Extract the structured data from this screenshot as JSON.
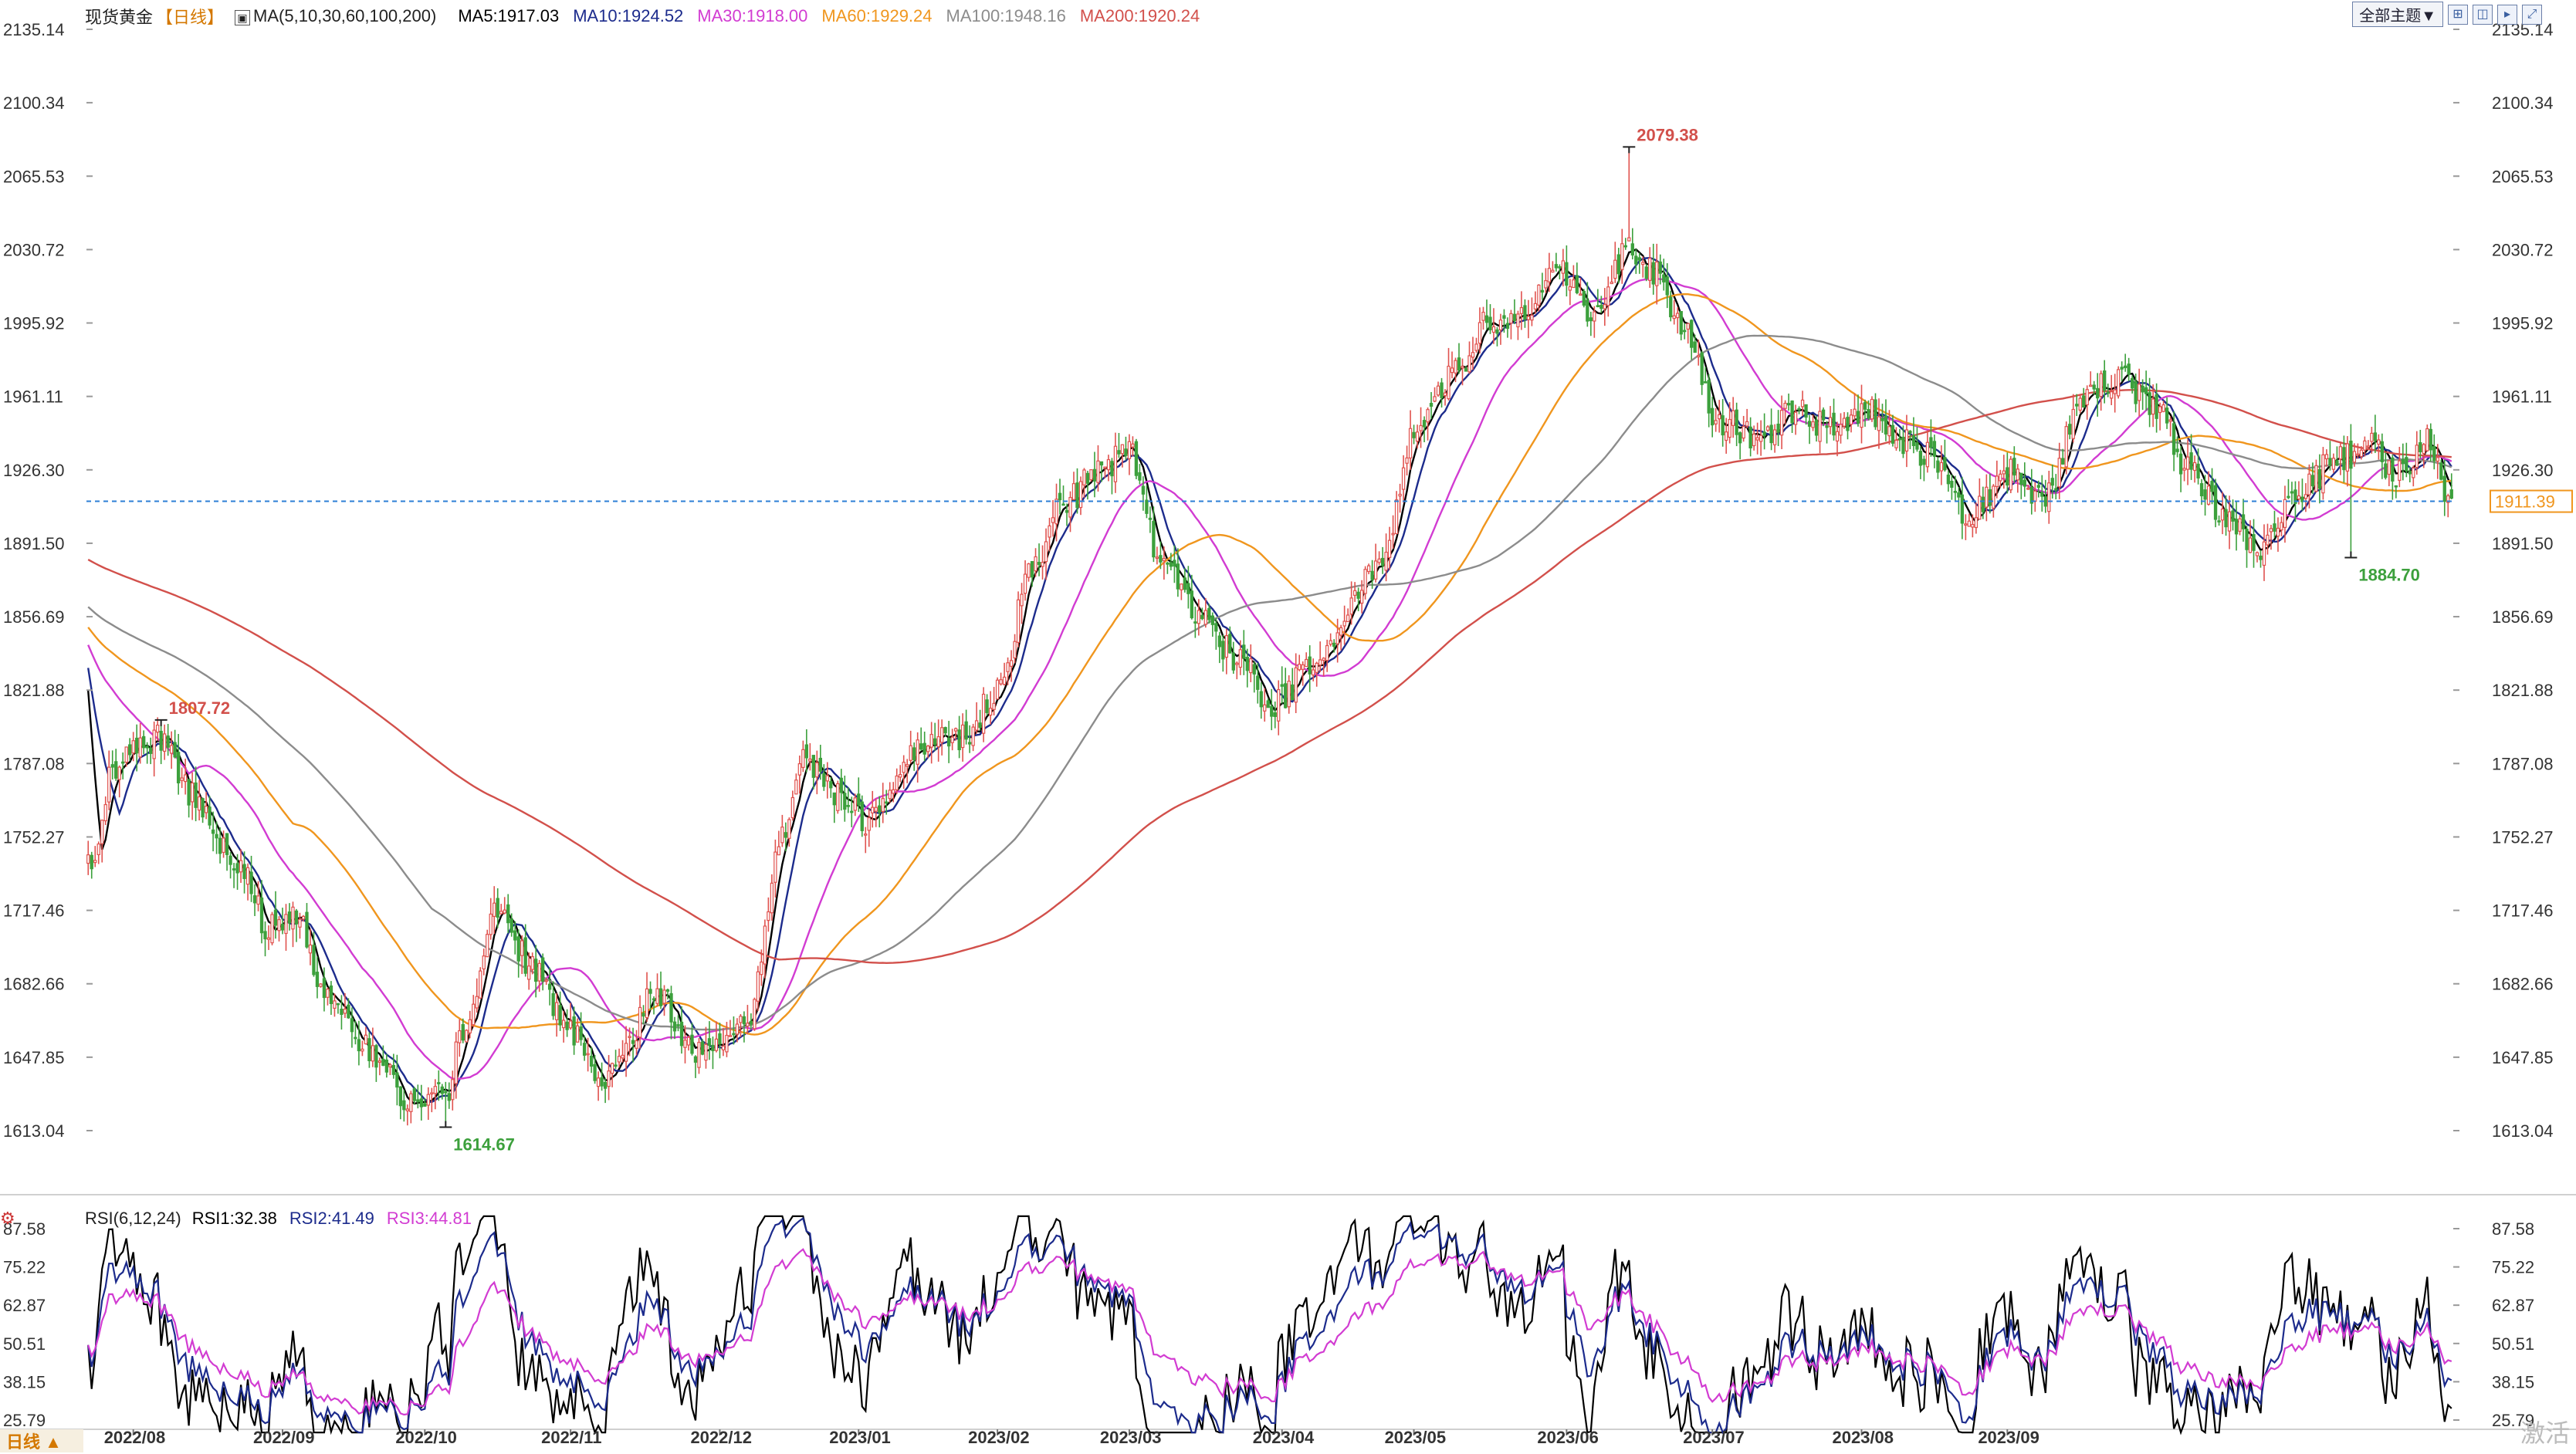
{
  "header": {
    "symbol": "现货黄金",
    "period": "【日线】",
    "ma_params": "MA(5,10,30,60,100,200)",
    "ma_values": [
      {
        "label": "MA5:1917.03",
        "color": "#000000"
      },
      {
        "label": "MA10:1924.52",
        "color": "#1c2b8c"
      },
      {
        "label": "MA30:1918.00",
        "color": "#d23cd2"
      },
      {
        "label": "MA60:1929.24",
        "color": "#f0961e"
      },
      {
        "label": "MA100:1948.16",
        "color": "#8c8c8c"
      },
      {
        "label": "MA200:1920.24",
        "color": "#d2504b"
      }
    ]
  },
  "toolbar": {
    "theme_button": "全部主题▼",
    "icons": [
      "grid-icon",
      "split-icon",
      "next-icon",
      "expand-icon"
    ]
  },
  "rsi_header": {
    "params": "RSI(6,12,24)",
    "values": [
      {
        "label": "RSI1:32.38",
        "color": "#000000"
      },
      {
        "label": "RSI2:41.49",
        "color": "#1c2b8c"
      },
      {
        "label": "RSI3:44.81",
        "color": "#d23cd2"
      }
    ]
  },
  "footer": {
    "period_button": "日线 ▲",
    "watermark": "激活"
  },
  "colors": {
    "up": "#e0524e",
    "down": "#3ca03c",
    "dashed": "#2c7fd6",
    "current_box": "#f0961e"
  },
  "chart_data": {
    "type": "candlestick",
    "price_axis": {
      "ticks": [
        "2135.14",
        "2100.34",
        "2065.53",
        "2030.72",
        "1995.92",
        "1961.11",
        "1926.30",
        "1891.50",
        "1856.69",
        "1821.88",
        "1787.08",
        "1752.27",
        "1717.46",
        "1682.66",
        "1647.85",
        "1613.04"
      ],
      "ylim": [
        1613.04,
        2135.14
      ]
    },
    "current_price": "1911.39",
    "annotations": [
      {
        "label": "1807.72",
        "x": 21,
        "y": 1807.72,
        "type": "high",
        "color": "#d2504b"
      },
      {
        "label": "1614.67",
        "x": 103,
        "y": 1614.67,
        "type": "low",
        "color": "#3ca03c"
      },
      {
        "label": "2079.38",
        "x": 444,
        "y": 2079.38,
        "type": "high",
        "color": "#d2504b"
      },
      {
        "label": "1884.70",
        "x": 652,
        "y": 1884.7,
        "type": "low",
        "color": "#3ca03c"
      }
    ],
    "x_labels": [
      {
        "label": "2022/08",
        "x": 13
      },
      {
        "label": "2022/09",
        "x": 56
      },
      {
        "label": "2022/10",
        "x": 97
      },
      {
        "label": "2022/11",
        "x": 139
      },
      {
        "label": "2022/12",
        "x": 182
      },
      {
        "label": "2023/01",
        "x": 222
      },
      {
        "label": "2023/02",
        "x": 262
      },
      {
        "label": "2023/03",
        "x": 300
      },
      {
        "label": "2023/04",
        "x": 344
      },
      {
        "label": "2023/05",
        "x": 382
      },
      {
        "label": "2023/06",
        "x": 426
      },
      {
        "label": "2023/07",
        "x": 468
      },
      {
        "label": "2023/08",
        "x": 511
      },
      {
        "label": "2023/09",
        "x": 553
      }
    ],
    "anchors": [
      [
        0,
        1740
      ],
      [
        8,
        1787
      ],
      [
        21,
        1800
      ],
      [
        30,
        1772
      ],
      [
        43,
        1740
      ],
      [
        52,
        1710
      ],
      [
        60,
        1718
      ],
      [
        68,
        1680
      ],
      [
        82,
        1650
      ],
      [
        92,
        1625
      ],
      [
        103,
        1630
      ],
      [
        108,
        1660
      ],
      [
        118,
        1720
      ],
      [
        128,
        1690
      ],
      [
        139,
        1660
      ],
      [
        148,
        1632
      ],
      [
        157,
        1660
      ],
      [
        163,
        1680
      ],
      [
        175,
        1650
      ],
      [
        182,
        1650
      ],
      [
        190,
        1668
      ],
      [
        200,
        1750
      ],
      [
        207,
        1790
      ],
      [
        215,
        1772
      ],
      [
        225,
        1760
      ],
      [
        232,
        1775
      ],
      [
        240,
        1798
      ],
      [
        252,
        1800
      ],
      [
        262,
        1820
      ],
      [
        272,
        1880
      ],
      [
        282,
        1912
      ],
      [
        292,
        1928
      ],
      [
        300,
        1935
      ],
      [
        310,
        1880
      ],
      [
        318,
        1860
      ],
      [
        332,
        1837
      ],
      [
        340,
        1815
      ],
      [
        355,
        1835
      ],
      [
        370,
        1876
      ],
      [
        385,
        1952
      ],
      [
        394,
        1975
      ],
      [
        403,
        1995
      ],
      [
        413,
        2000
      ],
      [
        423,
        2023
      ],
      [
        434,
        2000
      ],
      [
        444,
        2030
      ],
      [
        452,
        2020
      ],
      [
        460,
        1990
      ],
      [
        470,
        1950
      ],
      [
        482,
        1942
      ],
      [
        492,
        1955
      ],
      [
        502,
        1945
      ],
      [
        512,
        1955
      ],
      [
        522,
        1940
      ],
      [
        532,
        1932
      ],
      [
        542,
        1905
      ],
      [
        554,
        1925
      ],
      [
        564,
        1912
      ],
      [
        574,
        1960
      ],
      [
        585,
        1970
      ],
      [
        595,
        1958
      ],
      [
        606,
        1925
      ],
      [
        616,
        1902
      ],
      [
        627,
        1890
      ],
      [
        638,
        1917
      ],
      [
        648,
        1932
      ],
      [
        658,
        1937
      ],
      [
        665,
        1924
      ],
      [
        675,
        1940
      ],
      [
        680,
        1914
      ]
    ],
    "ma_series": [
      {
        "name": "MA5",
        "period": 5,
        "color": "#000000"
      },
      {
        "name": "MA10",
        "period": 10,
        "color": "#1c2b8c"
      },
      {
        "name": "MA30",
        "period": 30,
        "color": "#d23cd2"
      },
      {
        "name": "MA60",
        "period": 60,
        "color": "#f0961e"
      },
      {
        "name": "MA100",
        "period": 100,
        "color": "#8c8c8c"
      },
      {
        "name": "MA200",
        "period": 200,
        "color": "#d2504b"
      }
    ],
    "rsi": {
      "ticks": [
        "87.58",
        "75.22",
        "62.87",
        "50.51",
        "38.15",
        "25.79"
      ],
      "ylim": [
        25.79,
        87.58
      ],
      "series": [
        {
          "name": "RSI1",
          "period": 6,
          "color": "#000000"
        },
        {
          "name": "RSI2",
          "period": 12,
          "color": "#1c2b8c"
        },
        {
          "name": "RSI3",
          "period": 24,
          "color": "#d23cd2"
        }
      ]
    }
  }
}
